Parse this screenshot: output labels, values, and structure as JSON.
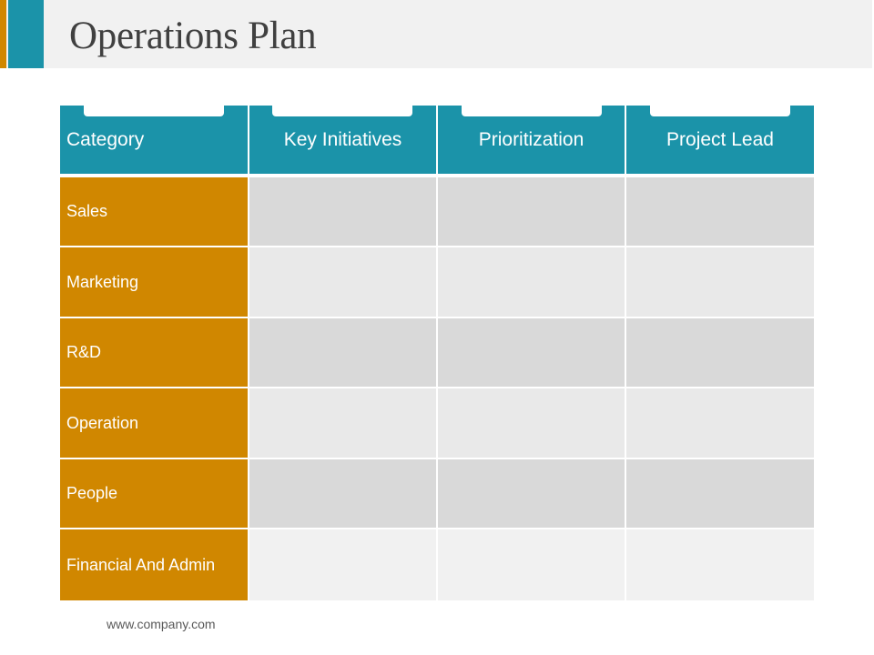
{
  "title": "Operations Plan",
  "table": {
    "headers": [
      "Category",
      "Key Initiatives",
      "Prioritization",
      "Project Lead"
    ],
    "rows": [
      {
        "category": "Sales",
        "key_initiatives": "",
        "prioritization": "",
        "project_lead": ""
      },
      {
        "category": "Marketing",
        "key_initiatives": "",
        "prioritization": "",
        "project_lead": ""
      },
      {
        "category": "R&D",
        "key_initiatives": "",
        "prioritization": "",
        "project_lead": ""
      },
      {
        "category": "Operation",
        "key_initiatives": "",
        "prioritization": "",
        "project_lead": ""
      },
      {
        "category": "People",
        "key_initiatives": "",
        "prioritization": "",
        "project_lead": ""
      },
      {
        "category": "Financial And Admin",
        "key_initiatives": "",
        "prioritization": "",
        "project_lead": ""
      }
    ]
  },
  "footer": "www.company.com",
  "colors": {
    "teal": "#1b93a9",
    "orange": "#d08700",
    "title_bar": "#f1f1f1",
    "cell_dark": "#d9d9d9",
    "cell_light": "#e9e9e9"
  }
}
